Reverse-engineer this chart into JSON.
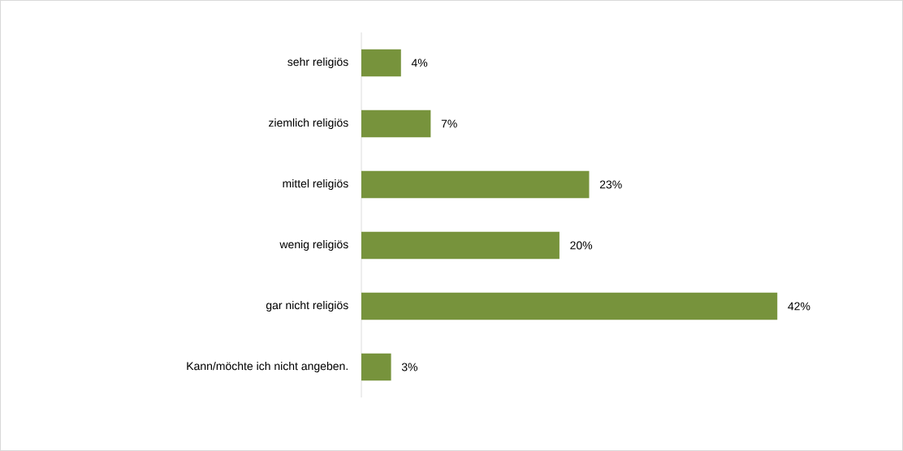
{
  "chart_data": {
    "type": "bar",
    "orientation": "horizontal",
    "categories": [
      "sehr religiös",
      "ziemlich religiös",
      "mittel religiös",
      "wenig religiös",
      "gar nicht religiös",
      "Kann/möchte ich nicht angeben."
    ],
    "values": [
      4,
      7,
      23,
      20,
      42,
      3
    ],
    "value_labels": [
      "4%",
      "7%",
      "23%",
      "20%",
      "42%",
      "3%"
    ],
    "color": "#77933c",
    "tick_labels": "y",
    "legend": false,
    "grid": false
  }
}
